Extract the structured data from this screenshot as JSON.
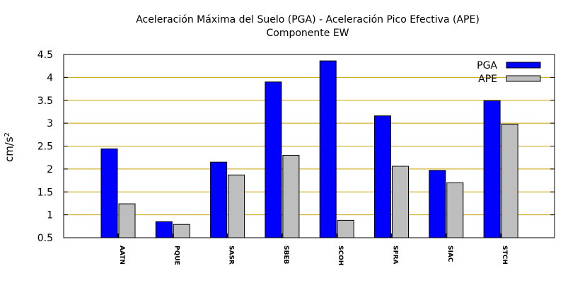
{
  "chart_data": {
    "type": "bar",
    "title": "Aceleración Máxima del Suelo (PGA) -  Aceleración Pico Efectiva (APE)",
    "subtitle": "Componente EW",
    "xlabel": "",
    "ylabel": "cm/s",
    "ylabel_superscript": "2",
    "ylim": [
      0.5,
      4.5
    ],
    "yticks": [
      0.5,
      1,
      1.5,
      2,
      2.5,
      3,
      3.5,
      4,
      4.5
    ],
    "ytick_labels": [
      "0.5",
      "1",
      "1.5",
      "2",
      "2.5",
      "3",
      "3.5",
      "4",
      "4.5"
    ],
    "grid": true,
    "legend_position": "top-right",
    "categories": [
      "AATN",
      "PQUE",
      "SASR",
      "SBEB",
      "SCOH",
      "SFRA",
      "SIAC",
      "STCH"
    ],
    "series": [
      {
        "name": "PGA",
        "color": "#0000ff",
        "values": [
          2.44,
          0.85,
          2.15,
          3.9,
          4.36,
          3.16,
          1.97,
          3.49
        ]
      },
      {
        "name": "APE",
        "color": "#bebebe",
        "values": [
          1.24,
          0.79,
          1.87,
          2.3,
          0.88,
          2.06,
          1.7,
          2.98
        ]
      }
    ],
    "colors": {
      "grid": "#c8a000",
      "axis": "#000000",
      "bar_outline": "#000000"
    }
  }
}
